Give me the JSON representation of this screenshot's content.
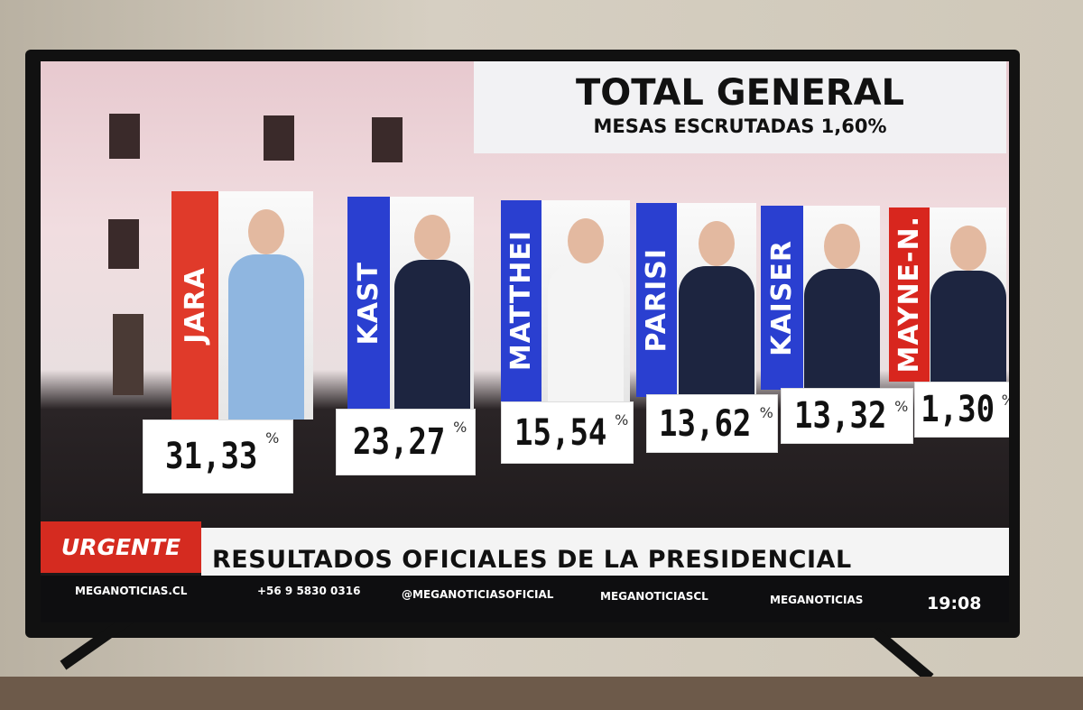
{
  "header": {
    "title": "TOTAL GENERAL",
    "subtitle": "MESAS ESCRUTADAS 1,60%"
  },
  "percent_sign": "%",
  "candidates": [
    {
      "name": "JARA",
      "percent": "31,33",
      "color": "#e03a2a"
    },
    {
      "name": "KAST",
      "percent": "23,27",
      "color": "#2a3fd0"
    },
    {
      "name": "MATTHEI",
      "percent": "15,54",
      "color": "#2a3fd0"
    },
    {
      "name": "PARISI",
      "percent": "13,62",
      "color": "#2a3fd0"
    },
    {
      "name": "KAISER",
      "percent": "13,32",
      "color": "#2a3fd0"
    },
    {
      "name": "MAYNE-N.",
      "percent": "1,30",
      "color": "#d8261e"
    }
  ],
  "ticker": {
    "tag": "URGENTE",
    "headline": "RESULTADOS OFICIALES DE LA PRESIDENCIAL",
    "site": "MEGANOTICIAS.CL",
    "phone": "+56 9 5830 0316",
    "youtube": "@MEGANOTICIASOFICIAL",
    "twitch": "MEGANOTICIASCL",
    "spotify": "MEGANOTICIAS",
    "time": "19:08"
  }
}
